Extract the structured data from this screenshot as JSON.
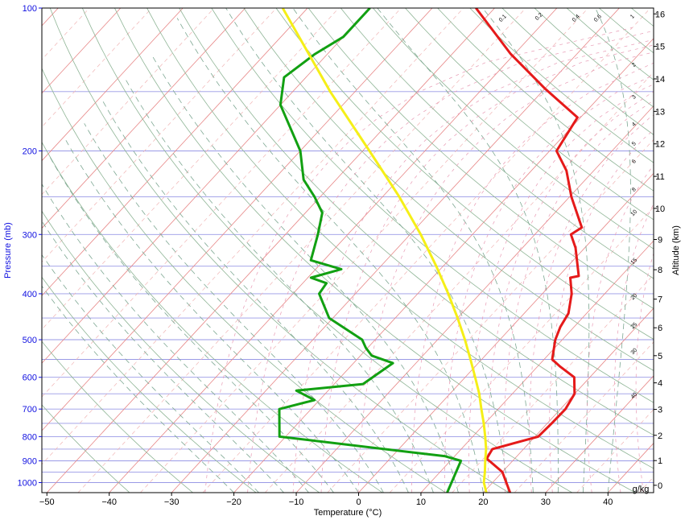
{
  "chart_data": {
    "type": "line",
    "chart_kind": "skew-T log-P diagram",
    "xlabel": "Temperature (°C)",
    "ylabel_left": "Pressure (mb)",
    "ylabel_right": "Altitude (km)",
    "mixing_ratio_unit": "g/kg",
    "xlim": [
      -52,
      48
    ],
    "plim": [
      1050,
      100
    ],
    "temperature_ticks": [
      -50,
      -40,
      -30,
      -20,
      -10,
      0,
      10,
      20,
      30,
      40
    ],
    "temperature_tick_labels": [
      "−50",
      "−40",
      "−30",
      "−20",
      "−10",
      "0",
      "10",
      "20",
      "30",
      "40"
    ],
    "pressure_ticks": [
      100,
      200,
      300,
      400,
      500,
      600,
      700,
      800,
      900,
      1000
    ],
    "pressure_tick_labels": [
      "100",
      "200",
      "300",
      "400",
      "500",
      "600",
      "700",
      "800",
      "900",
      "1000"
    ],
    "altitude_ticks_km": [
      0,
      1,
      2,
      3,
      4,
      5,
      6,
      7,
      8,
      9,
      10,
      11,
      12,
      13,
      14,
      15,
      16
    ],
    "altitude_tick_labels": [
      "0",
      "1",
      "2",
      "3",
      "4",
      "5",
      "6",
      "7",
      "8",
      "9",
      "10",
      "11",
      "12",
      "13",
      "14",
      "15",
      "16"
    ],
    "mixing_ratio_labels": [
      {
        "value": 0.1,
        "text": "0.1"
      },
      {
        "value": 0.2,
        "text": "0.2"
      },
      {
        "value": 0.4,
        "text": "0.4"
      },
      {
        "value": 0.6,
        "text": "0.6"
      },
      {
        "value": 1,
        "text": "1"
      },
      {
        "value": 2,
        "text": "2"
      },
      {
        "value": 3,
        "text": "3"
      },
      {
        "value": 4,
        "text": "4"
      },
      {
        "value": 5,
        "text": "5"
      },
      {
        "value": 6,
        "text": "6"
      },
      {
        "value": 8,
        "text": "8"
      },
      {
        "value": 10,
        "text": "10"
      },
      {
        "value": 15,
        "text": "15"
      },
      {
        "value": 20,
        "text": "20"
      },
      {
        "value": 25,
        "text": "25"
      },
      {
        "value": 30,
        "text": "30"
      },
      {
        "value": 40,
        "text": "40"
      }
    ],
    "series": [
      {
        "role": "temperature",
        "color": "#e51a1a",
        "points": [
          {
            "p": 1050,
            "t": 24.3
          },
          {
            "p": 950,
            "t": 20.0
          },
          {
            "p": 890,
            "t": 15.5
          },
          {
            "p": 850,
            "t": 15.0
          },
          {
            "p": 800,
            "t": 20.5
          },
          {
            "p": 750,
            "t": 20.7
          },
          {
            "p": 700,
            "t": 20.8
          },
          {
            "p": 650,
            "t": 20.0
          },
          {
            "p": 600,
            "t": 17.5
          },
          {
            "p": 570,
            "t": 13.7
          },
          {
            "p": 550,
            "t": 11.3
          },
          {
            "p": 500,
            "t": 8.9
          },
          {
            "p": 470,
            "t": 7.8
          },
          {
            "p": 440,
            "t": 7.1
          },
          {
            "p": 400,
            "t": 4.7
          },
          {
            "p": 370,
            "t": 2.1
          },
          {
            "p": 367,
            "t": 3.2
          },
          {
            "p": 320,
            "t": -1.5
          },
          {
            "p": 300,
            "t": -4.2
          },
          {
            "p": 290,
            "t": -3.5
          },
          {
            "p": 250,
            "t": -9.7
          },
          {
            "p": 220,
            "t": -14.4
          },
          {
            "p": 200,
            "t": -18.9
          },
          {
            "p": 170,
            "t": -20.5
          },
          {
            "p": 148,
            "t": -29.9
          },
          {
            "p": 125,
            "t": -40.6
          },
          {
            "p": 100,
            "t": -53.0
          }
        ]
      },
      {
        "role": "dewpoint",
        "color": "#12a012",
        "points": [
          {
            "p": 1050,
            "t": 14.2
          },
          {
            "p": 900,
            "t": 11.7
          },
          {
            "p": 880,
            "t": 8.5
          },
          {
            "p": 800,
            "t": -21.0
          },
          {
            "p": 700,
            "t": -25.1
          },
          {
            "p": 670,
            "t": -20.8
          },
          {
            "p": 640,
            "t": -25.1
          },
          {
            "p": 620,
            "t": -15.4
          },
          {
            "p": 560,
            "t": -13.7
          },
          {
            "p": 540,
            "t": -18.2
          },
          {
            "p": 520,
            "t": -20.3
          },
          {
            "p": 500,
            "t": -22.1
          },
          {
            "p": 450,
            "t": -30.6
          },
          {
            "p": 400,
            "t": -35.8
          },
          {
            "p": 380,
            "t": -36.2
          },
          {
            "p": 370,
            "t": -39.5
          },
          {
            "p": 355,
            "t": -35.9
          },
          {
            "p": 340,
            "t": -42.1
          },
          {
            "p": 300,
            "t": -44.8
          },
          {
            "p": 270,
            "t": -47.3
          },
          {
            "p": 250,
            "t": -50.9
          },
          {
            "p": 230,
            "t": -55.2
          },
          {
            "p": 200,
            "t": -60.0
          },
          {
            "p": 160,
            "t": -70.0
          },
          {
            "p": 140,
            "t": -73.5
          },
          {
            "p": 125,
            "t": -72.0
          },
          {
            "p": 115,
            "t": -70.0
          },
          {
            "p": 100,
            "t": -70.0
          }
        ]
      },
      {
        "role": "parcel",
        "color": "#f5ef18",
        "points": [
          {
            "p": 1050,
            "t": 20.5
          },
          {
            "p": 1000,
            "t": 18.6
          },
          {
            "p": 950,
            "t": 17.2
          },
          {
            "p": 900,
            "t": 15.6
          },
          {
            "p": 850,
            "t": 14.0
          },
          {
            "p": 800,
            "t": 12.0
          },
          {
            "p": 750,
            "t": 9.8
          },
          {
            "p": 700,
            "t": 7.3
          },
          {
            "p": 650,
            "t": 4.7
          },
          {
            "p": 600,
            "t": 1.6
          },
          {
            "p": 550,
            "t": -1.8
          },
          {
            "p": 500,
            "t": -5.6
          },
          {
            "p": 450,
            "t": -10.0
          },
          {
            "p": 400,
            "t": -15.1
          },
          {
            "p": 350,
            "t": -21.1
          },
          {
            "p": 300,
            "t": -28.3
          },
          {
            "p": 250,
            "t": -37.3
          },
          {
            "p": 200,
            "t": -48.9
          },
          {
            "p": 150,
            "t": -64.0
          },
          {
            "p": 100,
            "t": -84.0
          }
        ]
      }
    ]
  }
}
